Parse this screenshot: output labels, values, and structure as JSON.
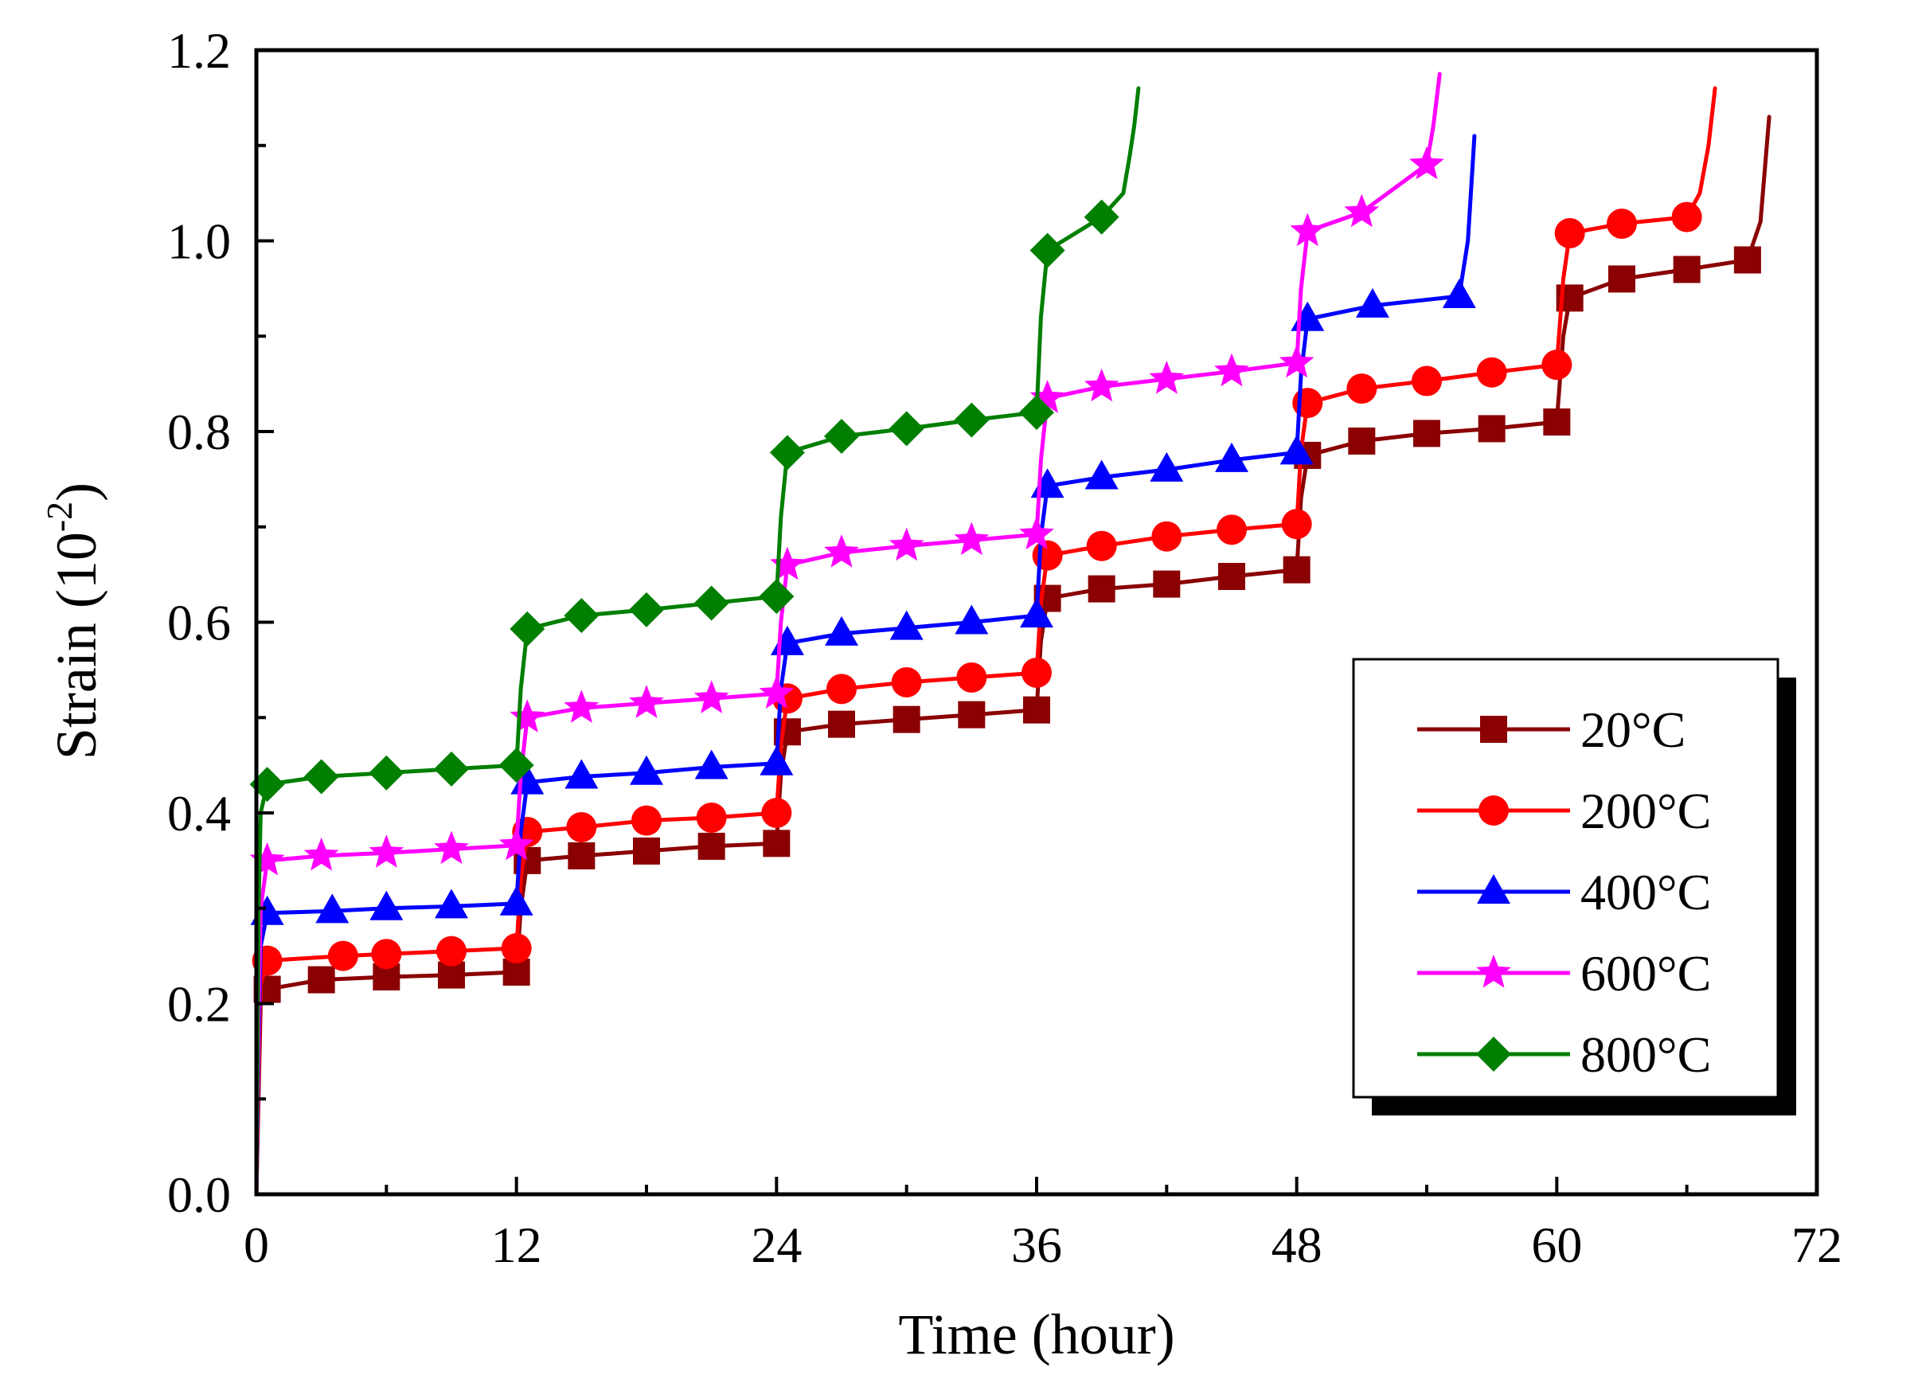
{
  "chart_data": {
    "type": "line",
    "title": "",
    "xlabel": "Time (hour)",
    "ylabel_main": "Strain (10",
    "ylabel_exp": "-2",
    "ylabel_close": ")",
    "xlim": [
      0,
      72
    ],
    "ylim": [
      0,
      1.2
    ],
    "xticks": [
      0,
      12,
      24,
      36,
      48,
      60,
      72
    ],
    "xtick_labels": [
      "0",
      "12",
      "24",
      "36",
      "48",
      "60",
      "72"
    ],
    "yticks": [
      0,
      0.2,
      0.4,
      0.6,
      0.8,
      1.0,
      1.2
    ],
    "ytick_labels": [
      "0.0",
      "0.2",
      "0.4",
      "0.6",
      "0.8",
      "1.0",
      "1.2"
    ],
    "grid": false,
    "legend_position": "lower-right",
    "series": [
      {
        "name": "20°C",
        "color": "#8b0000",
        "marker": "square",
        "x": [
          0,
          0.1,
          0.2,
          0.5,
          3,
          6,
          9,
          12,
          12.2,
          12.5,
          15,
          18,
          21,
          24,
          24.2,
          24.5,
          27,
          30,
          33,
          36,
          36.2,
          36.5,
          39,
          42,
          45,
          48,
          48.2,
          48.5,
          51,
          54,
          57,
          60,
          60.3,
          60.6,
          63,
          66,
          68.8,
          69.4,
          69.8
        ],
        "y": [
          0,
          0.1,
          0.2,
          0.215,
          0.225,
          0.228,
          0.23,
          0.233,
          0.3,
          0.35,
          0.355,
          0.36,
          0.365,
          0.368,
          0.44,
          0.485,
          0.493,
          0.498,
          0.503,
          0.508,
          0.58,
          0.625,
          0.635,
          0.64,
          0.648,
          0.655,
          0.73,
          0.775,
          0.79,
          0.798,
          0.803,
          0.81,
          0.9,
          0.94,
          0.96,
          0.97,
          0.98,
          1.02,
          1.13
        ],
        "markers_x": [
          0.5,
          3,
          6,
          9,
          12,
          12.5,
          15,
          18,
          21,
          24,
          24.5,
          27,
          30,
          33,
          36,
          36.5,
          39,
          42,
          45,
          48,
          48.5,
          51,
          54,
          57,
          60,
          60.6,
          63,
          66,
          68.8
        ]
      },
      {
        "name": "200°C",
        "color": "#ff0000",
        "marker": "circle",
        "x": [
          0,
          0.1,
          0.2,
          0.5,
          4,
          6,
          9,
          12,
          12.2,
          12.5,
          15,
          18,
          21,
          24,
          24.2,
          24.5,
          27,
          30,
          33,
          36,
          36.2,
          36.5,
          39,
          42,
          45,
          48,
          48.2,
          48.5,
          51,
          54,
          57,
          60,
          60.3,
          60.6,
          63,
          66,
          66.6,
          67,
          67.3
        ],
        "y": [
          0,
          0.12,
          0.22,
          0.245,
          0.25,
          0.252,
          0.255,
          0.258,
          0.33,
          0.38,
          0.385,
          0.392,
          0.395,
          0.4,
          0.47,
          0.52,
          0.53,
          0.537,
          0.542,
          0.547,
          0.62,
          0.67,
          0.68,
          0.69,
          0.697,
          0.703,
          0.78,
          0.83,
          0.845,
          0.853,
          0.862,
          0.87,
          0.96,
          1.008,
          1.018,
          1.025,
          1.05,
          1.1,
          1.16
        ],
        "markers_x": [
          0.5,
          4,
          6,
          9,
          12,
          12.5,
          15,
          18,
          21,
          24,
          24.5,
          27,
          30,
          33,
          36,
          36.5,
          39,
          42,
          45,
          48,
          48.5,
          51,
          54,
          57,
          60,
          60.6,
          63,
          66
        ]
      },
      {
        "name": "400°C",
        "color": "#0000ff",
        "marker": "triangle",
        "x": [
          0,
          0.1,
          0.2,
          0.5,
          3.5,
          6,
          9,
          12,
          12.2,
          12.5,
          15,
          18,
          21,
          24,
          24.2,
          24.5,
          27,
          30,
          33,
          36,
          36.2,
          36.5,
          39,
          42,
          45,
          48,
          48.2,
          48.5,
          51.5,
          55.5,
          55.9,
          56.2
        ],
        "y": [
          0,
          0.15,
          0.26,
          0.295,
          0.297,
          0.3,
          0.302,
          0.305,
          0.38,
          0.432,
          0.438,
          0.442,
          0.448,
          0.452,
          0.53,
          0.578,
          0.588,
          0.594,
          0.6,
          0.607,
          0.69,
          0.743,
          0.752,
          0.76,
          0.77,
          0.778,
          0.86,
          0.918,
          0.932,
          0.942,
          1.0,
          1.11
        ],
        "markers_x": [
          0.5,
          3.5,
          6,
          9,
          12,
          12.5,
          15,
          18,
          21,
          24,
          24.5,
          27,
          30,
          33,
          36,
          36.5,
          39,
          42,
          45,
          48,
          48.5,
          51.5,
          55.5
        ]
      },
      {
        "name": "600°C",
        "color": "#ff00ff",
        "marker": "star",
        "x": [
          0,
          0.1,
          0.2,
          0.5,
          3,
          6,
          9,
          12,
          12.2,
          12.5,
          15,
          18,
          21,
          24,
          24.2,
          24.5,
          27,
          30,
          33,
          36,
          36.2,
          36.5,
          39,
          42,
          45,
          48,
          48.2,
          48.5,
          51,
          54,
          54.3,
          54.6
        ],
        "y": [
          0,
          0.18,
          0.3,
          0.35,
          0.355,
          0.358,
          0.362,
          0.366,
          0.44,
          0.5,
          0.51,
          0.515,
          0.52,
          0.525,
          0.6,
          0.66,
          0.673,
          0.68,
          0.686,
          0.692,
          0.77,
          0.835,
          0.847,
          0.855,
          0.863,
          0.872,
          0.95,
          1.01,
          1.03,
          1.08,
          1.12,
          1.175
        ],
        "markers_x": [
          0.5,
          3,
          6,
          9,
          12,
          12.5,
          15,
          18,
          21,
          24,
          24.5,
          27,
          30,
          33,
          36,
          36.5,
          39,
          42,
          45,
          48,
          48.5,
          51,
          54
        ]
      },
      {
        "name": "800°C",
        "color": "#007f00",
        "marker": "diamond",
        "x": [
          0,
          0.05,
          0.1,
          0.2,
          0.5,
          3,
          6,
          9,
          12,
          12.2,
          12.5,
          15,
          18,
          21,
          24,
          24.2,
          24.5,
          27,
          30,
          33,
          36,
          36.2,
          36.5,
          39,
          40,
          40.3,
          40.5,
          40.7
        ],
        "y": [
          0,
          0.15,
          0.3,
          0.4,
          0.43,
          0.438,
          0.442,
          0.446,
          0.45,
          0.53,
          0.593,
          0.607,
          0.613,
          0.62,
          0.627,
          0.71,
          0.778,
          0.795,
          0.803,
          0.812,
          0.82,
          0.92,
          0.99,
          1.025,
          1.05,
          1.09,
          1.12,
          1.16
        ],
        "markers_x": [
          0.5,
          3,
          6,
          9,
          12,
          12.5,
          15,
          18,
          21,
          24,
          24.5,
          27,
          30,
          33,
          36,
          36.5,
          39
        ]
      }
    ]
  }
}
